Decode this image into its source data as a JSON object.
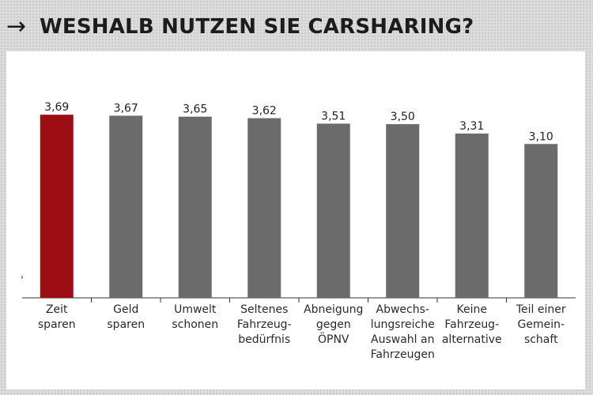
{
  "header": {
    "arrow_icon": "right-arrow-icon",
    "title": "WESHALB NUTZEN SIE CARSHARING?"
  },
  "colors": {
    "highlight": "#9c0d14",
    "bar": "#6b6b6b",
    "axis": "#333333"
  },
  "chart_data": {
    "type": "bar",
    "categories": [
      [
        "Zeit",
        "sparen"
      ],
      [
        "Geld",
        "sparen"
      ],
      [
        "Umwelt",
        "schonen"
      ],
      [
        "Seltenes",
        "Fahrzeug-",
        "bedürfnis"
      ],
      [
        "Abneigung",
        "gegen",
        "ÖPNV"
      ],
      [
        "Abwechs-",
        "lungsreiche",
        "Auswahl an",
        "Fahrzeugen"
      ],
      [
        "Keine",
        "Fahrzeug-",
        "alternative"
      ],
      [
        "Teil einer",
        "Gemein-",
        "schaft"
      ]
    ],
    "values": [
      3.69,
      3.67,
      3.65,
      3.62,
      3.51,
      3.5,
      3.31,
      3.1
    ],
    "value_labels": [
      "3,69",
      "3,67",
      "3,65",
      "3,62",
      "3,51",
      "3,50",
      "3,31",
      "3,10"
    ],
    "highlight_index": 0,
    "title": "",
    "xlabel": "",
    "ylabel": "",
    "ylim": [
      0,
      3.9
    ],
    "grid": false
  }
}
